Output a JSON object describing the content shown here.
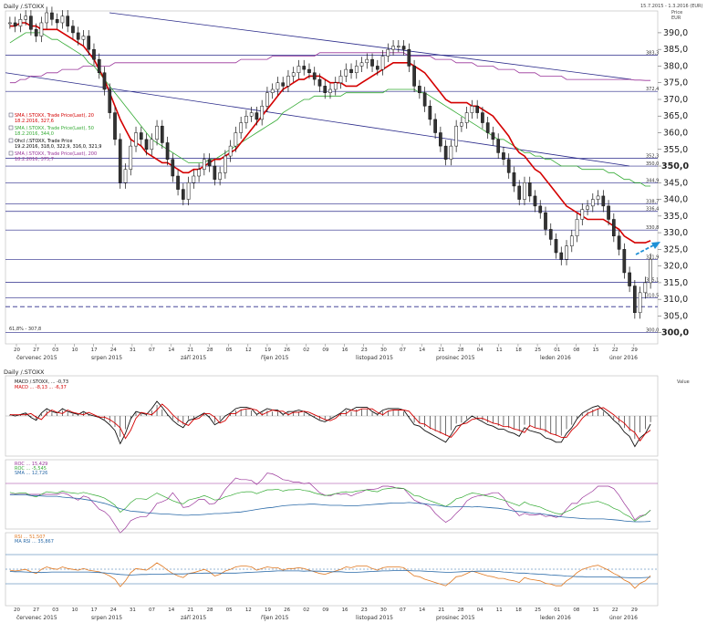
{
  "header": {
    "title": "Daily /.STOXX",
    "date_range": "15.7.2015 - 1.3.2016 (EUR)",
    "price_label": "Price",
    "currency": "EUR"
  },
  "legend": [
    {
      "text": "SMA /.STOXX, Trade Price(Last), 20",
      "sub": "18.2.2016, 327,6",
      "color": "#d40000"
    },
    {
      "text": "SMA /.STOXX, Trade Price(Last), 50",
      "sub": "18.2.2016, 344,0",
      "color": "#33aa33"
    },
    {
      "text": "Ohcl /.STOXX, Trade Price",
      "sub": "19.2.2016, 318,0, 322,9, 316,0, 321,9",
      "color": "#000000"
    },
    {
      "text": "SMA /.STOXX, Trade Price(Last), 200",
      "sub": "18.2.2016, 375,7",
      "color": "#993399"
    }
  ],
  "months": [
    "červenec 2015",
    "srpen 2015",
    "září 2015",
    "říjen 2015",
    "listopad 2015",
    "prosinec 2015",
    "leden 2016",
    "únor 2016"
  ],
  "day_ticks": [
    "20",
    "27",
    "03",
    "10",
    "17",
    "24",
    "31",
    "07",
    "14",
    "21",
    "28",
    "05",
    "12",
    "19",
    "26",
    "02",
    "09",
    "16",
    "23",
    "30",
    "07",
    "14",
    "21",
    "28",
    "04",
    "11",
    "18",
    "25",
    "01",
    "08",
    "15",
    "22",
    "29"
  ],
  "bold_level": "350,0",
  "bold_level_2": "300,0",
  "fib_label": "61,8% - 307,8",
  "panel2_title": "Daily /.STOXX",
  "panel2_legend": [
    "MACD /.STOXX, ... -0,73",
    "MACD ... -8,13 ... -6,37"
  ],
  "panel3_legend": [
    "ROC ... 15,429",
    "ROC ... -5,545",
    "SMA ... 12,726"
  ],
  "panel4_legend": [
    "RSI ... 51,507",
    "MA RSI ... 35,867"
  ],
  "value_label": "Value",
  "chart_data": {
    "type": "line",
    "title": "Daily /.STOXX",
    "xlabel": "",
    "ylabel": "Price EUR",
    "ylim": [
      298,
      396
    ],
    "yticks": [
      300,
      305,
      310,
      315,
      320,
      325,
      330,
      335,
      340,
      345,
      350,
      355,
      360,
      365,
      370,
      375,
      380,
      385,
      390
    ],
    "horizontal_levels": [
      {
        "label": "383,3",
        "value": 383.3
      },
      {
        "label": "372,4",
        "value": 372.4
      },
      {
        "label": "352,3",
        "value": 352.3
      },
      {
        "label": "350,0",
        "value": 350.0
      },
      {
        "label": "344,9",
        "value": 344.9
      },
      {
        "label": "338,7",
        "value": 338.7
      },
      {
        "label": "336,4",
        "value": 336.4
      },
      {
        "label": "330,8",
        "value": 330.8
      },
      {
        "label": "321,9",
        "value": 321.9
      },
      {
        "label": "315,1",
        "value": 315.1
      },
      {
        "label": "310,5",
        "value": 310.5
      },
      {
        "label": "300,0",
        "value": 300.0
      }
    ],
    "close": [
      393,
      392,
      394,
      395,
      391,
      389,
      393,
      396,
      394,
      393,
      395,
      392,
      390,
      388,
      389,
      385,
      382,
      378,
      373,
      366,
      358,
      345,
      349,
      356,
      360,
      358,
      355,
      358,
      362,
      357,
      352,
      347,
      343,
      340,
      345,
      347,
      349,
      352,
      350,
      346,
      348,
      353,
      356,
      360,
      363,
      365,
      366,
      364,
      368,
      372,
      373,
      375,
      374,
      377,
      378,
      380,
      379,
      378,
      376,
      374,
      372,
      373,
      375,
      377,
      379,
      378,
      380,
      381,
      382,
      380,
      379,
      383,
      385,
      386,
      386,
      385,
      380,
      374,
      372,
      368,
      364,
      360,
      356,
      352,
      356,
      362,
      363,
      366,
      368,
      366,
      363,
      360,
      358,
      354,
      352,
      348,
      344,
      340,
      345,
      341,
      338,
      336,
      331,
      328,
      324,
      322,
      326,
      329,
      334,
      337,
      338,
      340,
      341,
      338,
      334,
      329,
      325,
      318,
      314,
      306,
      312,
      315,
      322
    ],
    "sma20": [
      392,
      392,
      393,
      393,
      392,
      392,
      391,
      391,
      391,
      391,
      390,
      389,
      388,
      387,
      386,
      384,
      382,
      379,
      376,
      372,
      368,
      364,
      361,
      358,
      357,
      356,
      354,
      353,
      352,
      351,
      351,
      350,
      349,
      348,
      348,
      349,
      349,
      350,
      351,
      352,
      352,
      353,
      354,
      355,
      357,
      359,
      361,
      363,
      365,
      367,
      369,
      371,
      373,
      374,
      375,
      376,
      376,
      377,
      377,
      377,
      376,
      375,
      375,
      375,
      374,
      374,
      374,
      375,
      376,
      377,
      378,
      379,
      380,
      381,
      381,
      381,
      381,
      380,
      379,
      378,
      376,
      374,
      372,
      370,
      369,
      369,
      369,
      369,
      368,
      368,
      367,
      366,
      365,
      363,
      361,
      359,
      356,
      354,
      353,
      351,
      349,
      348,
      346,
      344,
      342,
      340,
      338,
      337,
      336,
      335,
      334,
      334,
      334,
      334,
      333,
      332,
      331,
      329,
      328,
      327,
      327,
      327,
      327.6
    ],
    "sma50": [
      387,
      388,
      389,
      390,
      390,
      390,
      390,
      389,
      388,
      388,
      387,
      386,
      385,
      384,
      383,
      381,
      380,
      378,
      376,
      374,
      372,
      370,
      368,
      366,
      364,
      362,
      360,
      358,
      357,
      356,
      355,
      354,
      353,
      352,
      351,
      351,
      351,
      351,
      352,
      352,
      353,
      354,
      355,
      356,
      357,
      358,
      359,
      360,
      361,
      362,
      363,
      364,
      366,
      367,
      368,
      369,
      370,
      370,
      371,
      371,
      371,
      371,
      371,
      371,
      372,
      372,
      372,
      372,
      372,
      372,
      372,
      372,
      373,
      373,
      373,
      373,
      373,
      373,
      372,
      372,
      371,
      370,
      369,
      368,
      367,
      366,
      365,
      364,
      363,
      362,
      361,
      360,
      359,
      358,
      358,
      357,
      356,
      355,
      354,
      354,
      353,
      353,
      352,
      352,
      351,
      350,
      350,
      350,
      350,
      349,
      349,
      349,
      349,
      349,
      348,
      348,
      347,
      346,
      346,
      345,
      345,
      344,
      344
    ],
    "sma200": [
      375,
      375,
      376,
      376,
      377,
      377,
      377,
      378,
      378,
      378,
      379,
      379,
      379,
      379,
      380,
      380,
      380,
      380,
      380,
      380,
      381,
      381,
      381,
      381,
      381,
      381,
      381,
      381,
      381,
      381,
      381,
      381,
      381,
      381,
      381,
      381,
      381,
      381,
      381,
      381,
      381,
      381,
      381,
      381,
      382,
      382,
      382,
      382,
      382,
      382,
      383,
      383,
      383,
      383,
      383,
      383,
      383,
      383,
      383,
      384,
      384,
      384,
      384,
      384,
      384,
      384,
      384,
      384,
      384,
      384,
      384,
      384,
      384,
      384,
      384,
      384,
      383,
      383,
      383,
      383,
      383,
      382,
      382,
      382,
      382,
      381,
      381,
      381,
      381,
      380,
      380,
      380,
      380,
      379,
      379,
      379,
      379,
      378,
      378,
      378,
      378,
      377,
      377,
      377,
      377,
      377,
      376,
      376,
      376,
      376,
      376,
      376,
      376,
      376,
      376,
      376,
      376,
      376,
      376,
      375.8,
      375.8,
      375.7,
      375.7
    ]
  }
}
